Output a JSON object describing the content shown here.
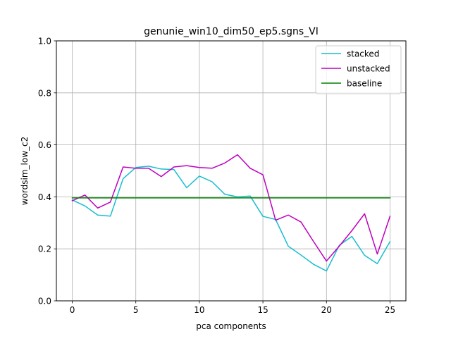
{
  "chart_data": {
    "type": "line",
    "title": "genunie_win10_dim50_ep5.sgns_VI",
    "xlabel": "pca components",
    "ylabel": "wordsim_low_c2",
    "xlim": [
      -1.25,
      26.25
    ],
    "ylim": [
      0.0,
      1.0
    ],
    "xticks": [
      0,
      5,
      10,
      15,
      20,
      25
    ],
    "xtick_labels": [
      "0",
      "5",
      "10",
      "15",
      "20",
      "25"
    ],
    "yticks": [
      0.0,
      0.2,
      0.4,
      0.6,
      0.8,
      1.0
    ],
    "ytick_labels": [
      "0.0",
      "0.2",
      "0.4",
      "0.6",
      "0.8",
      "1.0"
    ],
    "grid": true,
    "legend_position": "top-right",
    "x": [
      0,
      1,
      2,
      3,
      4,
      5,
      6,
      7,
      8,
      9,
      10,
      11,
      12,
      13,
      14,
      15,
      16,
      17,
      18,
      19,
      20,
      21,
      22,
      23,
      24,
      25
    ],
    "series": [
      {
        "name": "stacked",
        "color": "#17becf",
        "values": [
          0.388,
          0.365,
          0.33,
          0.326,
          0.47,
          0.513,
          0.518,
          0.507,
          0.505,
          0.435,
          0.48,
          0.458,
          0.41,
          0.4,
          0.403,
          0.325,
          0.313,
          0.21,
          0.176,
          0.14,
          0.115,
          0.213,
          0.248,
          0.175,
          0.143,
          0.228
        ]
      },
      {
        "name": "unstacked",
        "color": "#bf00bf",
        "values": [
          0.385,
          0.407,
          0.357,
          0.38,
          0.515,
          0.51,
          0.51,
          0.478,
          0.515,
          0.52,
          0.513,
          0.51,
          0.53,
          0.562,
          0.51,
          0.485,
          0.31,
          0.33,
          0.303,
          0.227,
          0.153,
          0.21,
          0.27,
          0.335,
          0.18,
          0.325
        ]
      },
      {
        "name": "baseline",
        "color": "#008000",
        "values": [
          0.396,
          0.396,
          0.396,
          0.396,
          0.396,
          0.396,
          0.396,
          0.396,
          0.396,
          0.396,
          0.396,
          0.396,
          0.396,
          0.396,
          0.396,
          0.396,
          0.396,
          0.396,
          0.396,
          0.396,
          0.396,
          0.396,
          0.396,
          0.396,
          0.396,
          0.396
        ]
      }
    ]
  }
}
